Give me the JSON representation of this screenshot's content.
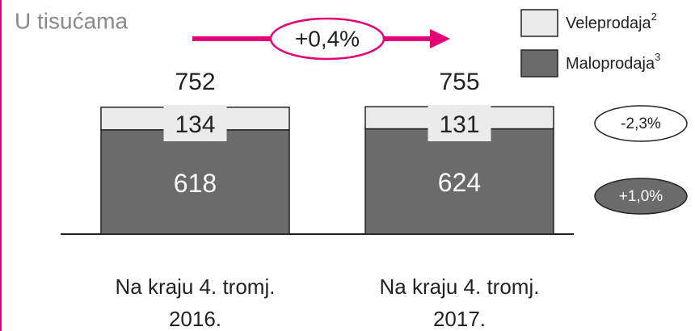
{
  "chart_data": {
    "type": "stacked_bar",
    "title": "U tisućama",
    "categories": [
      "Na kraju 4. tromj. 2016.",
      "Na kraju 4. tromj. 2017."
    ],
    "series": [
      {
        "name": "Maloprodaja",
        "name_sup": "3",
        "color": "#6b6b6b",
        "values": [
          618,
          624
        ],
        "change": "+1,0%"
      },
      {
        "name": "Veleprodaja",
        "name_sup": "2",
        "color": "#ebebeb",
        "values": [
          134,
          131
        ],
        "change": "-2,3%"
      }
    ],
    "totals": [
      752,
      755
    ],
    "total_change": "+0,4%",
    "accent_color": "#e20074"
  }
}
